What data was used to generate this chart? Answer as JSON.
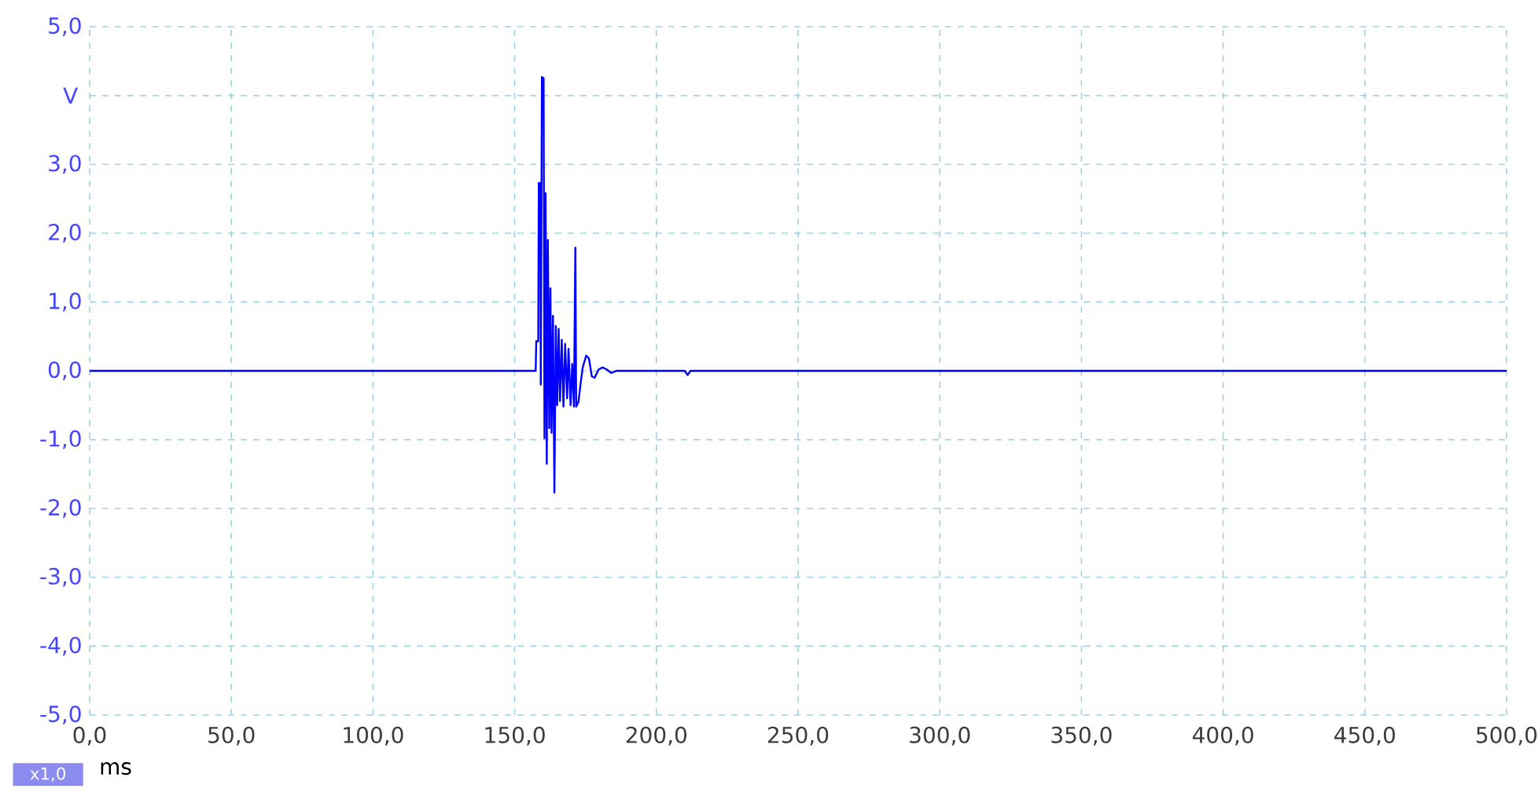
{
  "chart_data": {
    "type": "line",
    "xlabel": "ms",
    "ylabel": "V",
    "annotations": [
      "x1,0"
    ],
    "xlim": [
      0,
      500
    ],
    "ylim": [
      -5,
      5
    ],
    "xticks": [
      {
        "value": 0,
        "label": "0,0"
      },
      {
        "value": 50,
        "label": "50,0"
      },
      {
        "value": 100,
        "label": "100,0"
      },
      {
        "value": 150,
        "label": "150,0"
      },
      {
        "value": 200,
        "label": "200,0"
      },
      {
        "value": 250,
        "label": "250,0"
      },
      {
        "value": 300,
        "label": "300,0"
      },
      {
        "value": 350,
        "label": "350,0"
      },
      {
        "value": 400,
        "label": "400,0"
      },
      {
        "value": 450,
        "label": "450,0"
      },
      {
        "value": 500,
        "label": "500,0"
      }
    ],
    "yticks": [
      {
        "value": -5,
        "label": "-5,0"
      },
      {
        "value": -4,
        "label": "-4,0"
      },
      {
        "value": -3,
        "label": "-3,0"
      },
      {
        "value": -2,
        "label": "-2,0"
      },
      {
        "value": -1,
        "label": "-1,0"
      },
      {
        "value": 0,
        "label": "0,0"
      },
      {
        "value": 1,
        "label": "1,0"
      },
      {
        "value": 2,
        "label": "2,0"
      },
      {
        "value": 3,
        "label": "3,0"
      },
      {
        "value": 4,
        "label": null
      },
      {
        "value": 5,
        "label": "5,0"
      }
    ],
    "grid": true,
    "line_style": "solid",
    "series": [
      {
        "color": "#0000ff",
        "x": [
          0,
          157.4,
          157.6,
          158.3,
          158.5,
          159.0,
          159.2,
          159.6,
          160.2,
          160.5,
          160.9,
          161.3,
          161.7,
          162.2,
          162.6,
          163.0,
          163.5,
          164.0,
          164.5,
          165.0,
          165.5,
          166.0,
          166.6,
          167.2,
          167.8,
          168.5,
          169.0,
          169.7,
          170.3,
          170.9,
          171.4,
          171.7,
          172.5,
          173.2,
          174.0,
          175.2,
          176.2,
          177.2,
          178.2,
          179.6,
          181.0,
          182.5,
          184,
          186,
          210,
          211,
          212,
          500
        ],
        "values": [
          0,
          0,
          0.43,
          0.43,
          2.73,
          2.73,
          -0.2,
          4.27,
          4.25,
          -0.98,
          2.58,
          -1.35,
          1.9,
          -0.83,
          1.2,
          -0.9,
          0.8,
          -1.77,
          0.65,
          -0.5,
          0.61,
          -0.44,
          0.45,
          -0.52,
          0.39,
          -0.4,
          0.32,
          -0.5,
          0.1,
          -0.52,
          1.79,
          -0.52,
          -0.45,
          -0.2,
          0.05,
          0.22,
          0.18,
          -0.08,
          -0.1,
          0.02,
          0.05,
          0.02,
          -0.03,
          0,
          0,
          -0.06,
          0,
          0
        ]
      }
    ]
  }
}
